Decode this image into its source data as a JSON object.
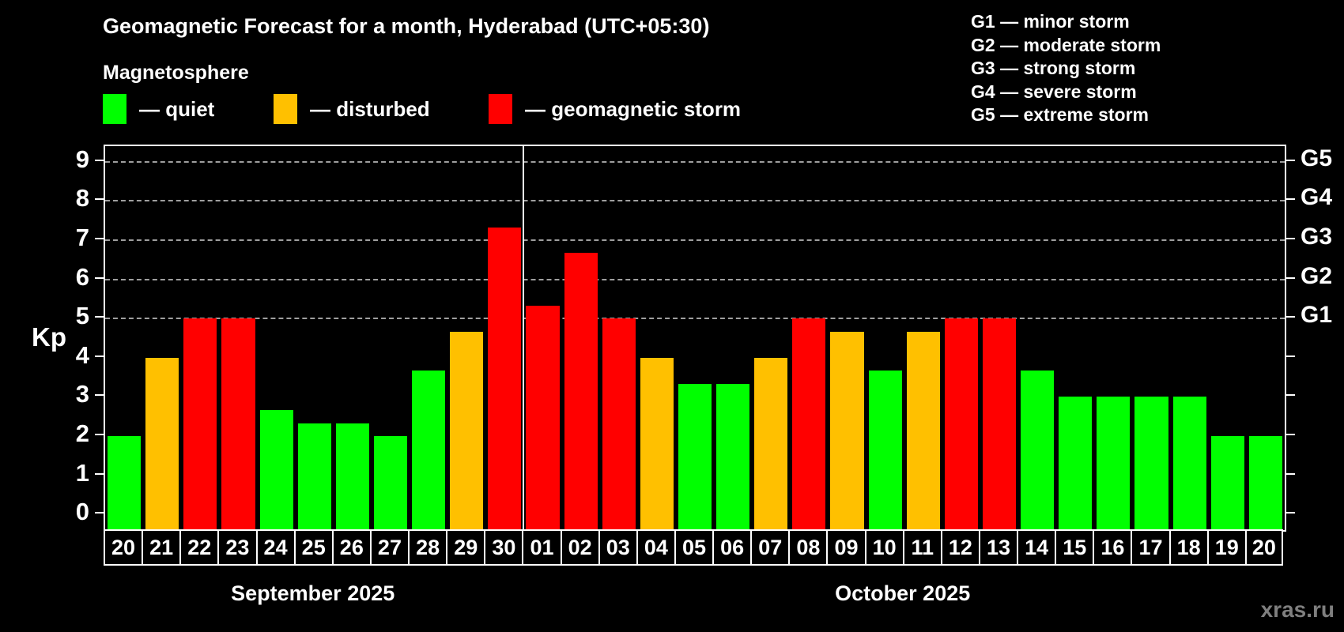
{
  "title": "Geomagnetic Forecast for a month, Hyderabad (UTC+05:30)",
  "subtitle": "Magnetosphere",
  "legend": {
    "items": [
      {
        "key": "quiet",
        "label": "— quiet",
        "color": "#00ff00"
      },
      {
        "key": "disturbed",
        "label": "— disturbed",
        "color": "#ffc000"
      },
      {
        "key": "storm",
        "label": "— geomagnetic storm",
        "color": "#ff0000"
      }
    ]
  },
  "storm_scale": [
    "G1 — minor storm",
    "G2 — moderate storm",
    "G3 — strong storm",
    "G4 — severe storm",
    "G5 — extreme storm"
  ],
  "watermark": "xras.ru",
  "chart_data": {
    "type": "bar",
    "ylabel": "Kp",
    "ylim": [
      -0.4,
      9.4
    ],
    "yticks": [
      0,
      1,
      2,
      3,
      4,
      5,
      6,
      7,
      8,
      9
    ],
    "gridlines_at": [
      5,
      6,
      7,
      8,
      9
    ],
    "grid": "dashed horizontal at storm levels only",
    "right_axis": [
      {
        "kp": 5,
        "label": "G1"
      },
      {
        "kp": 6,
        "label": "G2"
      },
      {
        "kp": 7,
        "label": "G3"
      },
      {
        "kp": 8,
        "label": "G4"
      },
      {
        "kp": 9,
        "label": "G5"
      }
    ],
    "months": [
      {
        "label": "September 2025",
        "days": 11
      },
      {
        "label": "October 2025",
        "days": 20
      }
    ],
    "days": [
      {
        "label": "20",
        "kp": 2.0,
        "condition": "quiet"
      },
      {
        "label": "21",
        "kp": 4.0,
        "condition": "disturbed"
      },
      {
        "label": "22",
        "kp": 5.0,
        "condition": "storm"
      },
      {
        "label": "23",
        "kp": 5.0,
        "condition": "storm"
      },
      {
        "label": "24",
        "kp": 2.67,
        "condition": "quiet"
      },
      {
        "label": "25",
        "kp": 2.33,
        "condition": "quiet"
      },
      {
        "label": "26",
        "kp": 2.33,
        "condition": "quiet"
      },
      {
        "label": "27",
        "kp": 2.0,
        "condition": "quiet"
      },
      {
        "label": "28",
        "kp": 3.67,
        "condition": "quiet"
      },
      {
        "label": "29",
        "kp": 4.67,
        "condition": "disturbed"
      },
      {
        "label": "30",
        "kp": 7.33,
        "condition": "storm"
      },
      {
        "label": "01",
        "kp": 5.33,
        "condition": "storm"
      },
      {
        "label": "02",
        "kp": 6.67,
        "condition": "storm"
      },
      {
        "label": "03",
        "kp": 5.0,
        "condition": "storm"
      },
      {
        "label": "04",
        "kp": 4.0,
        "condition": "disturbed"
      },
      {
        "label": "05",
        "kp": 3.33,
        "condition": "quiet"
      },
      {
        "label": "06",
        "kp": 3.33,
        "condition": "quiet"
      },
      {
        "label": "07",
        "kp": 4.0,
        "condition": "disturbed"
      },
      {
        "label": "08",
        "kp": 5.0,
        "condition": "storm"
      },
      {
        "label": "09",
        "kp": 4.67,
        "condition": "disturbed"
      },
      {
        "label": "10",
        "kp": 3.67,
        "condition": "quiet"
      },
      {
        "label": "11",
        "kp": 4.67,
        "condition": "disturbed"
      },
      {
        "label": "12",
        "kp": 5.0,
        "condition": "storm"
      },
      {
        "label": "13",
        "kp": 5.0,
        "condition": "storm"
      },
      {
        "label": "14",
        "kp": 3.67,
        "condition": "quiet"
      },
      {
        "label": "15",
        "kp": 3.0,
        "condition": "quiet"
      },
      {
        "label": "16",
        "kp": 3.0,
        "condition": "quiet"
      },
      {
        "label": "17",
        "kp": 3.0,
        "condition": "quiet"
      },
      {
        "label": "18",
        "kp": 3.0,
        "condition": "quiet"
      },
      {
        "label": "19",
        "kp": 2.0,
        "condition": "quiet"
      },
      {
        "label": "20",
        "kp": 2.0,
        "condition": "quiet"
      }
    ]
  }
}
